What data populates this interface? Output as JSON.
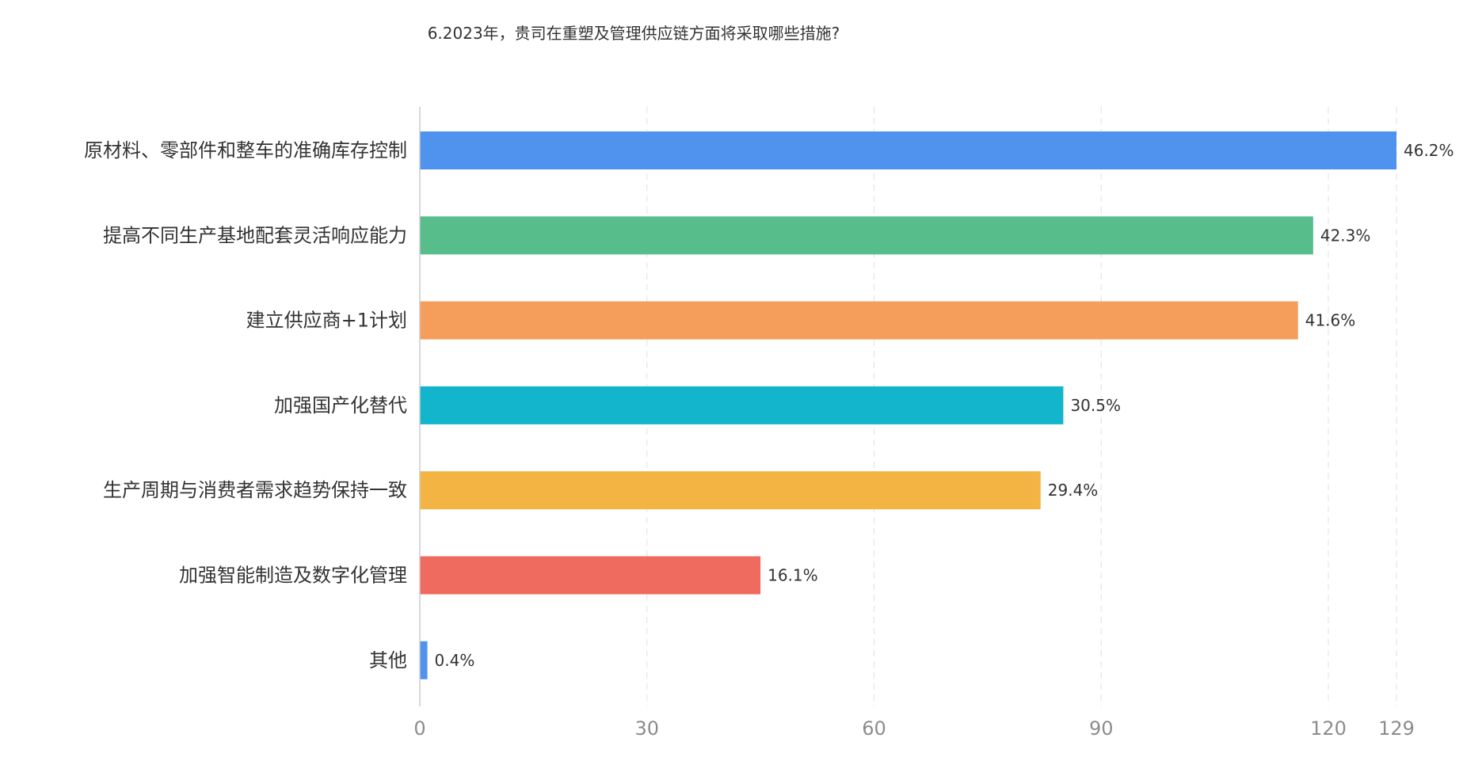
{
  "chart_data": {
    "type": "bar",
    "orientation": "horizontal",
    "title": "6.2023年，贵司在重塑及管理供应链方面将采取哪些措施?",
    "categories": [
      "原材料、零部件和整车的准确库存控制",
      "提高不同生产基地配套灵活响应能力",
      "建立供应商+1计划",
      "加强国产化替代",
      "生产周期与消费者需求趋势保持一致",
      "加强智能制造及数字化管理",
      "其他"
    ],
    "values": [
      129,
      118,
      116,
      85,
      82,
      45,
      1
    ],
    "value_labels": [
      "46.2%",
      "42.3%",
      "41.6%",
      "30.5%",
      "29.4%",
      "16.1%",
      "0.4%"
    ],
    "colors": [
      "#5093ee",
      "#57bd8a",
      "#f59e5b",
      "#12b5cb",
      "#f3b443",
      "#f06b5f",
      "#5093ee"
    ],
    "xticks": [
      0,
      30,
      60,
      90,
      120,
      129
    ],
    "xlim": [
      0,
      129
    ],
    "grid": true,
    "legend": "none"
  }
}
